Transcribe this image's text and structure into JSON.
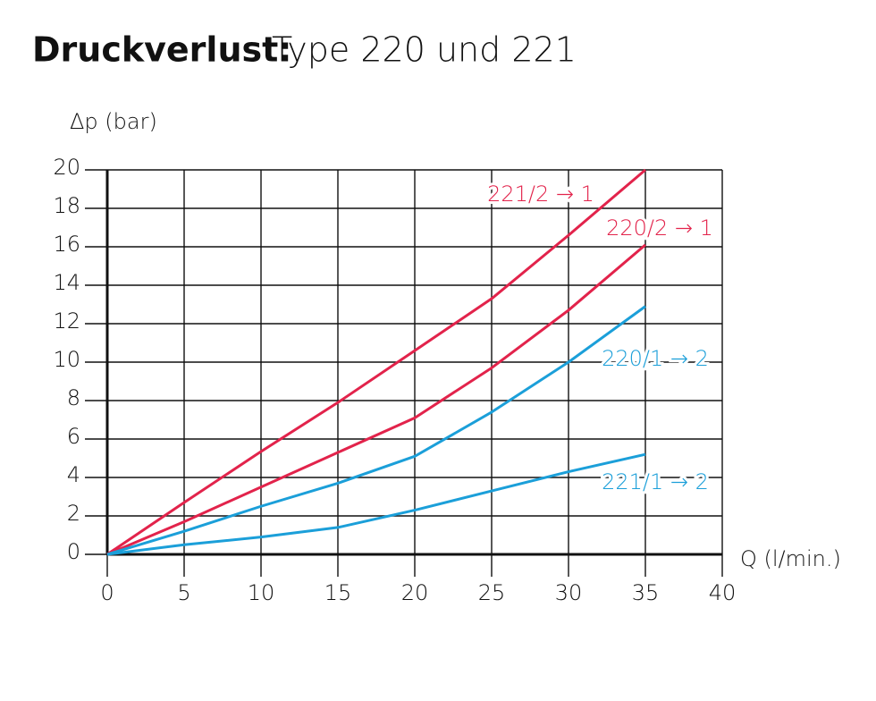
{
  "chart_data": {
    "type": "line",
    "title": "Druckverlust:",
    "subtitle": "Type 220 und 221",
    "y_label": "Δp (bar)",
    "x_label": "Q (l/min.)",
    "x": [
      0,
      5,
      10,
      15,
      20,
      25,
      30,
      35
    ],
    "series": [
      {
        "name": "221/2 → 1",
        "color": "#e2234b",
        "values": [
          0,
          2.7,
          5.35,
          7.9,
          10.6,
          13.3,
          16.6,
          20
        ]
      },
      {
        "name": "220/2 → 1",
        "color": "#e2234b",
        "values": [
          0,
          1.7,
          3.5,
          5.3,
          7.1,
          9.7,
          12.7,
          16.1
        ]
      },
      {
        "name": "220/1 → 2",
        "color": "#1b9fd9",
        "values": [
          0,
          1.2,
          2.5,
          3.7,
          5.1,
          7.4,
          10.0,
          12.9
        ]
      },
      {
        "name": "221/1 → 2",
        "color": "#1b9fd9",
        "values": [
          0,
          0.5,
          0.9,
          1.4,
          2.3,
          3.3,
          4.3,
          5.2
        ]
      }
    ],
    "xlim": [
      0,
      40
    ],
    "xticks": [
      0,
      5,
      10,
      15,
      20,
      25,
      30,
      35,
      40
    ],
    "ylim": [
      0,
      20
    ],
    "yticks": [
      0,
      2,
      4,
      6,
      8,
      10,
      12,
      14,
      16,
      18,
      20
    ],
    "grid": true
  }
}
